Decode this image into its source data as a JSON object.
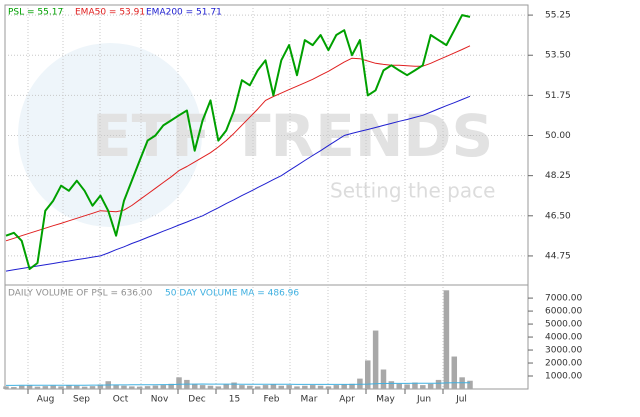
{
  "chart_data": {
    "type": "line",
    "watermark": {
      "brand": "ETF TRENDS",
      "tagline": "Setting the pace"
    },
    "x_labels": [
      "Aug",
      "Sep",
      "Oct",
      "Nov",
      "Dec",
      "15",
      "Feb",
      "Mar",
      "Apr",
      "May",
      "Jun",
      "Jul"
    ],
    "ylim": [
      43.57,
      55.69
    ],
    "yticks": [
      {
        "value": 55.25,
        "label": "55.25"
      },
      {
        "value": 53.5,
        "label": "53.50"
      },
      {
        "value": 51.75,
        "label": "51.75"
      },
      {
        "value": 50,
        "label": "50.00"
      },
      {
        "value": 48.25,
        "label": "48.25"
      },
      {
        "value": 46.5,
        "label": "46.50"
      },
      {
        "value": 44.75,
        "label": "44.75"
      }
    ],
    "grid": true,
    "series": [
      {
        "name": "PSL = 55.17",
        "color": "#00a000",
        "width": 2,
        "values": [
          45.63,
          45.76,
          45.41,
          44.18,
          44.44,
          46.72,
          47.16,
          47.81,
          47.59,
          48.03,
          47.59,
          46.94,
          47.38,
          46.72,
          45.63,
          47.16,
          48.03,
          48.91,
          49.78,
          50.0,
          50.44,
          50.66,
          50.88,
          51.09,
          49.34,
          50.66,
          51.53,
          49.78,
          50.22,
          51.09,
          52.41,
          52.19,
          52.84,
          53.28,
          51.75,
          53.28,
          53.94,
          52.63,
          54.16,
          53.94,
          54.38,
          53.72,
          54.38,
          54.59,
          53.5,
          54.16,
          51.75,
          51.97,
          52.84,
          53.06,
          52.84,
          52.63,
          52.84,
          53.06,
          54.38,
          54.16,
          53.94,
          54.59,
          55.25,
          55.17
        ]
      },
      {
        "name": "EMA50 = 53.91",
        "color": "#e02020",
        "width": 1,
        "values": [
          45.41,
          45.52,
          45.63,
          45.74,
          45.85,
          45.96,
          46.07,
          46.17,
          46.28,
          46.39,
          46.5,
          46.61,
          46.72,
          46.7,
          46.68,
          46.75,
          46.95,
          47.2,
          47.45,
          47.7,
          47.95,
          48.2,
          48.47,
          48.65,
          48.85,
          49.05,
          49.25,
          49.5,
          49.78,
          50.1,
          50.45,
          50.8,
          51.15,
          51.53,
          51.7,
          51.85,
          52.0,
          52.15,
          52.3,
          52.45,
          52.63,
          52.8,
          53.0,
          53.2,
          53.37,
          53.35,
          53.25,
          53.15,
          53.1,
          53.06,
          53.06,
          53.04,
          53.02,
          53.02,
          53.15,
          53.3,
          53.45,
          53.6,
          53.75,
          53.91
        ]
      },
      {
        "name": "EMA200 = 51.71",
        "color": "#2020d0",
        "width": 1,
        "values": [
          44.09,
          44.15,
          44.2,
          44.26,
          44.31,
          44.37,
          44.42,
          44.48,
          44.53,
          44.59,
          44.64,
          44.7,
          44.75,
          44.88,
          45.02,
          45.15,
          45.29,
          45.42,
          45.56,
          45.69,
          45.83,
          45.96,
          46.1,
          46.23,
          46.37,
          46.5,
          46.68,
          46.85,
          47.03,
          47.2,
          47.38,
          47.55,
          47.73,
          47.9,
          48.08,
          48.25,
          48.47,
          48.69,
          48.91,
          49.13,
          49.34,
          49.56,
          49.78,
          50.0,
          50.09,
          50.18,
          50.26,
          50.35,
          50.44,
          50.53,
          50.62,
          50.7,
          50.79,
          50.88,
          51.02,
          51.16,
          51.3,
          51.43,
          51.57,
          51.71
        ]
      }
    ],
    "volume": {
      "ylim": [
        0,
        7700
      ],
      "yticks": [
        {
          "value": 7000,
          "label": "7000.00"
        },
        {
          "value": 6000,
          "label": "6000.00"
        },
        {
          "value": 5000,
          "label": "5000.00"
        },
        {
          "value": 4000,
          "label": "4000.00"
        },
        {
          "value": 3000,
          "label": "3000.00"
        },
        {
          "value": 2000,
          "label": "2000.00"
        },
        {
          "value": 1000,
          "label": "1000.00"
        }
      ],
      "bars": {
        "name": "DAILY VOLUME OF PSL = 636.00",
        "color": "#a8a8a8",
        "values": [
          200,
          150,
          250,
          300,
          180,
          220,
          260,
          200,
          300,
          250,
          180,
          220,
          350,
          600,
          300,
          250,
          200,
          180,
          220,
          260,
          300,
          400,
          900,
          700,
          400,
          300,
          250,
          200,
          350,
          500,
          300,
          250,
          200,
          300,
          350,
          250,
          300,
          200,
          250,
          300,
          250,
          200,
          300,
          350,
          400,
          800,
          2200,
          4500,
          1500,
          600,
          400,
          350,
          500,
          300,
          400,
          700,
          7600,
          2500,
          900,
          636
        ]
      },
      "ma": {
        "name": "50 DAY VOLUME MA = 486.96",
        "color": "#40b0e0",
        "values": [
          280,
          280,
          282,
          284,
          285,
          286,
          288,
          290,
          292,
          294,
          296,
          298,
          300,
          310,
          315,
          318,
          320,
          322,
          325,
          330,
          335,
          340,
          360,
          375,
          380,
          382,
          380,
          378,
          376,
          375,
          372,
          370,
          368,
          366,
          364,
          362,
          360,
          358,
          356,
          355,
          354,
          353,
          352,
          352,
          354,
          360,
          380,
          410,
          425,
          430,
          432,
          434,
          436,
          438,
          440,
          445,
          470,
          480,
          485,
          486.96
        ]
      }
    }
  }
}
